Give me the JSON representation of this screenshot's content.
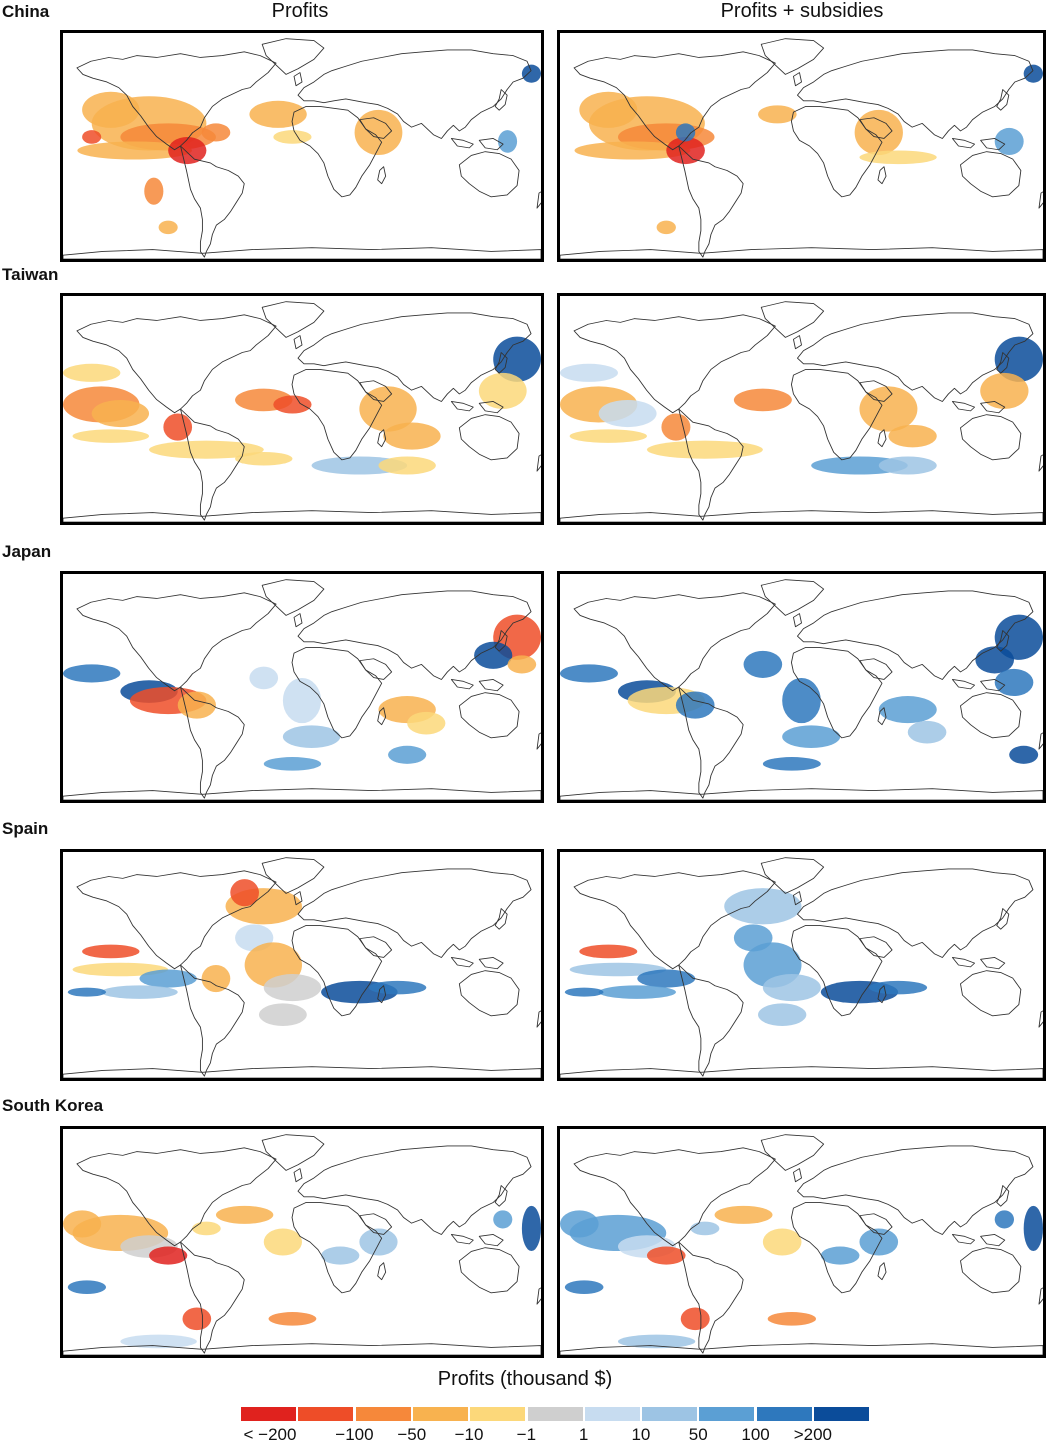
{
  "columns": [
    "Profits",
    "Profits + subsidies"
  ],
  "rows": [
    "China",
    "Taiwan",
    "Japan",
    "Spain",
    "South Korea"
  ],
  "legend": {
    "title": "Profits (thousand $)",
    "colors": [
      "#e0221e",
      "#ee4d28",
      "#f6883a",
      "#f8b24f",
      "#fcd87a",
      "#cfcfcf",
      "#c7dcf0",
      "#9dc4e4",
      "#5b9fd4",
      "#2e78bd",
      "#0b4c9a"
    ],
    "ticks": [
      "< −200",
      "−100",
      "−50",
      "−10",
      "−1",
      "1",
      "10",
      "50",
      "100",
      ">200"
    ]
  },
  "map_data": {
    "panels": [
      {
        "country": "China",
        "column": "Profits",
        "blobs": [
          [
            0.1,
            0.34,
            0.06,
            0.08,
            3
          ],
          [
            0.18,
            0.4,
            0.12,
            0.12,
            3
          ],
          [
            0.22,
            0.46,
            0.1,
            0.06,
            2
          ],
          [
            0.15,
            0.52,
            0.12,
            0.04,
            3
          ],
          [
            0.26,
            0.52,
            0.04,
            0.06,
            0
          ],
          [
            0.22,
            0.86,
            0.02,
            0.03,
            3
          ],
          [
            0.06,
            0.46,
            0.02,
            0.03,
            1
          ],
          [
            0.45,
            0.36,
            0.06,
            0.06,
            3
          ],
          [
            0.48,
            0.46,
            0.04,
            0.03,
            4
          ],
          [
            0.66,
            0.44,
            0.05,
            0.1,
            3
          ],
          [
            0.98,
            0.18,
            0.02,
            0.04,
            10
          ],
          [
            0.93,
            0.48,
            0.02,
            0.05,
            8
          ],
          [
            0.19,
            0.7,
            0.02,
            0.06,
            2
          ],
          [
            0.32,
            0.44,
            0.03,
            0.04,
            2
          ]
        ]
      },
      {
        "country": "China",
        "column": "Profits + subsidies",
        "blobs": [
          [
            0.1,
            0.34,
            0.06,
            0.08,
            3
          ],
          [
            0.18,
            0.4,
            0.12,
            0.12,
            3
          ],
          [
            0.22,
            0.46,
            0.1,
            0.06,
            2
          ],
          [
            0.15,
            0.52,
            0.12,
            0.04,
            3
          ],
          [
            0.26,
            0.52,
            0.04,
            0.06,
            0
          ],
          [
            0.22,
            0.86,
            0.02,
            0.03,
            3
          ],
          [
            0.26,
            0.44,
            0.02,
            0.04,
            9
          ],
          [
            0.45,
            0.36,
            0.04,
            0.04,
            3
          ],
          [
            0.66,
            0.44,
            0.05,
            0.1,
            3
          ],
          [
            0.98,
            0.18,
            0.02,
            0.04,
            10
          ],
          [
            0.93,
            0.48,
            0.03,
            0.06,
            8
          ],
          [
            0.7,
            0.55,
            0.08,
            0.03,
            4
          ]
        ]
      },
      {
        "country": "Taiwan",
        "column": "Profits",
        "blobs": [
          [
            0.06,
            0.34,
            0.06,
            0.04,
            4
          ],
          [
            0.08,
            0.48,
            0.08,
            0.08,
            2
          ],
          [
            0.12,
            0.52,
            0.06,
            0.06,
            3
          ],
          [
            0.1,
            0.62,
            0.08,
            0.03,
            4
          ],
          [
            0.24,
            0.58,
            0.03,
            0.06,
            1
          ],
          [
            0.42,
            0.46,
            0.06,
            0.05,
            2
          ],
          [
            0.48,
            0.48,
            0.04,
            0.04,
            1
          ],
          [
            0.68,
            0.5,
            0.06,
            0.1,
            3
          ],
          [
            0.73,
            0.62,
            0.06,
            0.06,
            3
          ],
          [
            0.62,
            0.75,
            0.1,
            0.04,
            7
          ],
          [
            0.72,
            0.75,
            0.06,
            0.04,
            4
          ],
          [
            0.95,
            0.28,
            0.05,
            0.1,
            10
          ],
          [
            0.92,
            0.42,
            0.05,
            0.08,
            4
          ],
          [
            0.3,
            0.68,
            0.12,
            0.04,
            4
          ],
          [
            0.42,
            0.72,
            0.06,
            0.03,
            4
          ]
        ]
      },
      {
        "country": "Taiwan",
        "column": "Profits + subsidies",
        "blobs": [
          [
            0.06,
            0.34,
            0.06,
            0.04,
            6
          ],
          [
            0.08,
            0.48,
            0.08,
            0.08,
            3
          ],
          [
            0.14,
            0.52,
            0.06,
            0.06,
            6
          ],
          [
            0.1,
            0.62,
            0.08,
            0.03,
            4
          ],
          [
            0.24,
            0.58,
            0.03,
            0.06,
            2
          ],
          [
            0.42,
            0.46,
            0.06,
            0.05,
            2
          ],
          [
            0.68,
            0.5,
            0.06,
            0.1,
            3
          ],
          [
            0.73,
            0.62,
            0.05,
            0.05,
            3
          ],
          [
            0.62,
            0.75,
            0.1,
            0.04,
            8
          ],
          [
            0.72,
            0.75,
            0.06,
            0.04,
            7
          ],
          [
            0.95,
            0.28,
            0.05,
            0.1,
            10
          ],
          [
            0.92,
            0.42,
            0.05,
            0.08,
            3
          ],
          [
            0.3,
            0.68,
            0.12,
            0.04,
            4
          ]
        ]
      },
      {
        "country": "Japan",
        "column": "Profits",
        "blobs": [
          [
            0.06,
            0.44,
            0.06,
            0.04,
            9
          ],
          [
            0.18,
            0.52,
            0.06,
            0.05,
            10
          ],
          [
            0.22,
            0.56,
            0.08,
            0.06,
            1
          ],
          [
            0.28,
            0.58,
            0.04,
            0.06,
            3
          ],
          [
            0.42,
            0.46,
            0.03,
            0.05,
            6
          ],
          [
            0.5,
            0.56,
            0.04,
            0.1,
            6
          ],
          [
            0.52,
            0.72,
            0.06,
            0.05,
            7
          ],
          [
            0.48,
            0.84,
            0.06,
            0.03,
            8
          ],
          [
            0.72,
            0.6,
            0.06,
            0.06,
            3
          ],
          [
            0.76,
            0.66,
            0.04,
            0.05,
            4
          ],
          [
            0.95,
            0.28,
            0.05,
            0.1,
            1
          ],
          [
            0.9,
            0.36,
            0.04,
            0.06,
            10
          ],
          [
            0.96,
            0.4,
            0.03,
            0.04,
            3
          ],
          [
            0.72,
            0.8,
            0.04,
            0.04,
            8
          ]
        ]
      },
      {
        "country": "Japan",
        "column": "Profits + subsidies",
        "blobs": [
          [
            0.06,
            0.44,
            0.06,
            0.04,
            9
          ],
          [
            0.18,
            0.52,
            0.06,
            0.05,
            10
          ],
          [
            0.22,
            0.56,
            0.08,
            0.06,
            4
          ],
          [
            0.28,
            0.58,
            0.04,
            0.06,
            9
          ],
          [
            0.42,
            0.4,
            0.04,
            0.06,
            9
          ],
          [
            0.5,
            0.56,
            0.04,
            0.1,
            9
          ],
          [
            0.52,
            0.72,
            0.06,
            0.05,
            8
          ],
          [
            0.48,
            0.84,
            0.06,
            0.03,
            9
          ],
          [
            0.72,
            0.6,
            0.06,
            0.06,
            8
          ],
          [
            0.76,
            0.7,
            0.04,
            0.05,
            7
          ],
          [
            0.95,
            0.28,
            0.05,
            0.1,
            10
          ],
          [
            0.9,
            0.38,
            0.04,
            0.06,
            10
          ],
          [
            0.94,
            0.48,
            0.04,
            0.06,
            9
          ],
          [
            0.96,
            0.8,
            0.03,
            0.04,
            10
          ]
        ]
      },
      {
        "country": "Spain",
        "column": "Profits",
        "blobs": [
          [
            0.42,
            0.24,
            0.08,
            0.08,
            3
          ],
          [
            0.38,
            0.18,
            0.03,
            0.06,
            1
          ],
          [
            0.4,
            0.38,
            0.04,
            0.06,
            6
          ],
          [
            0.44,
            0.5,
            0.06,
            0.1,
            3
          ],
          [
            0.48,
            0.6,
            0.06,
            0.06,
            5
          ],
          [
            0.46,
            0.72,
            0.05,
            0.05,
            5
          ],
          [
            0.1,
            0.44,
            0.06,
            0.03,
            1
          ],
          [
            0.12,
            0.52,
            0.1,
            0.03,
            4
          ],
          [
            0.22,
            0.56,
            0.06,
            0.04,
            8
          ],
          [
            0.16,
            0.62,
            0.08,
            0.03,
            7
          ],
          [
            0.05,
            0.62,
            0.04,
            0.02,
            9
          ],
          [
            0.62,
            0.62,
            0.08,
            0.05,
            10
          ],
          [
            0.7,
            0.6,
            0.06,
            0.03,
            9
          ],
          [
            0.32,
            0.56,
            0.03,
            0.06,
            3
          ]
        ]
      },
      {
        "country": "Spain",
        "column": "Profits + subsidies",
        "blobs": [
          [
            0.42,
            0.24,
            0.08,
            0.08,
            7
          ],
          [
            0.4,
            0.38,
            0.04,
            0.06,
            8
          ],
          [
            0.44,
            0.5,
            0.06,
            0.1,
            8
          ],
          [
            0.48,
            0.6,
            0.06,
            0.06,
            7
          ],
          [
            0.46,
            0.72,
            0.05,
            0.05,
            7
          ],
          [
            0.1,
            0.44,
            0.06,
            0.03,
            1
          ],
          [
            0.12,
            0.52,
            0.1,
            0.03,
            7
          ],
          [
            0.22,
            0.56,
            0.06,
            0.04,
            9
          ],
          [
            0.16,
            0.62,
            0.08,
            0.03,
            8
          ],
          [
            0.05,
            0.62,
            0.04,
            0.02,
            9
          ],
          [
            0.62,
            0.62,
            0.08,
            0.05,
            10
          ],
          [
            0.7,
            0.6,
            0.06,
            0.03,
            9
          ]
        ]
      },
      {
        "country": "South Korea",
        "column": "Profits",
        "blobs": [
          [
            0.04,
            0.42,
            0.04,
            0.06,
            3
          ],
          [
            0.12,
            0.46,
            0.1,
            0.08,
            3
          ],
          [
            0.18,
            0.52,
            0.06,
            0.05,
            5
          ],
          [
            0.22,
            0.56,
            0.04,
            0.04,
            0
          ],
          [
            0.3,
            0.44,
            0.03,
            0.03,
            4
          ],
          [
            0.38,
            0.38,
            0.06,
            0.04,
            3
          ],
          [
            0.46,
            0.5,
            0.04,
            0.06,
            4
          ],
          [
            0.58,
            0.56,
            0.04,
            0.04,
            7
          ],
          [
            0.66,
            0.5,
            0.04,
            0.06,
            7
          ],
          [
            0.28,
            0.84,
            0.03,
            0.05,
            1
          ],
          [
            0.48,
            0.84,
            0.05,
            0.03,
            2
          ],
          [
            0.98,
            0.44,
            0.02,
            0.1,
            10
          ],
          [
            0.92,
            0.4,
            0.02,
            0.04,
            8
          ],
          [
            0.05,
            0.7,
            0.04,
            0.03,
            9
          ],
          [
            0.2,
            0.94,
            0.08,
            0.03,
            6
          ]
        ]
      },
      {
        "country": "South Korea",
        "column": "Profits + subsidies",
        "blobs": [
          [
            0.04,
            0.42,
            0.04,
            0.06,
            8
          ],
          [
            0.12,
            0.46,
            0.1,
            0.08,
            8
          ],
          [
            0.18,
            0.52,
            0.06,
            0.05,
            6
          ],
          [
            0.22,
            0.56,
            0.04,
            0.04,
            1
          ],
          [
            0.3,
            0.44,
            0.03,
            0.03,
            7
          ],
          [
            0.38,
            0.38,
            0.06,
            0.04,
            3
          ],
          [
            0.46,
            0.5,
            0.04,
            0.06,
            4
          ],
          [
            0.58,
            0.56,
            0.04,
            0.04,
            8
          ],
          [
            0.66,
            0.5,
            0.04,
            0.06,
            8
          ],
          [
            0.28,
            0.84,
            0.03,
            0.05,
            1
          ],
          [
            0.48,
            0.84,
            0.05,
            0.03,
            2
          ],
          [
            0.98,
            0.44,
            0.02,
            0.1,
            10
          ],
          [
            0.92,
            0.4,
            0.02,
            0.04,
            9
          ],
          [
            0.05,
            0.7,
            0.04,
            0.03,
            9
          ],
          [
            0.2,
            0.94,
            0.08,
            0.03,
            7
          ]
        ]
      }
    ]
  }
}
